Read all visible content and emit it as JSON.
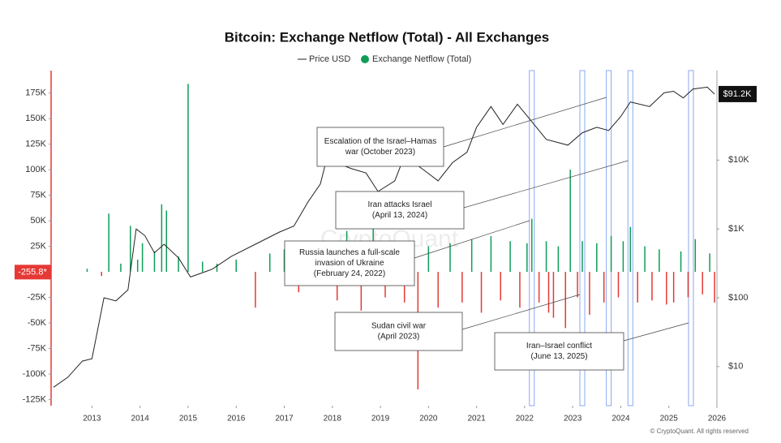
{
  "chart_data": {
    "type": "bar-line",
    "title": "Bitcoin: Exchange Netflow (Total) - All Exchanges",
    "xlim": [
      2012.15,
      2026.0
    ],
    "xticks": [
      2013,
      2014,
      2015,
      2016,
      2017,
      2018,
      2019,
      2020,
      2021,
      2022,
      2023,
      2024,
      2025,
      2026
    ],
    "ylim": [
      -131000,
      197000
    ],
    "yticks": [
      {
        "value": -125000,
        "label": "-125K"
      },
      {
        "value": -100000,
        "label": "-100K"
      },
      {
        "value": -75000,
        "label": "-75K"
      },
      {
        "value": -50000,
        "label": "-50K"
      },
      {
        "value": -25000,
        "label": "-25K"
      },
      {
        "value": 25000,
        "label": "25K"
      },
      {
        "value": 50000,
        "label": "50K"
      },
      {
        "value": 75000,
        "label": "75K"
      },
      {
        "value": 100000,
        "label": "100K"
      },
      {
        "value": 125000,
        "label": "125K"
      },
      {
        "value": 150000,
        "label": "150K"
      },
      {
        "value": 175000,
        "label": "175K"
      }
    ],
    "y2lim": [
      2.7,
      200000
    ],
    "y2_log": true,
    "y2ticks": [
      {
        "value": 10,
        "label": "$10"
      },
      {
        "value": 100,
        "label": "$100"
      },
      {
        "value": 1000,
        "label": "$1K"
      },
      {
        "value": 10000,
        "label": "$10K"
      }
    ],
    "series": [
      {
        "name": "Exchange Netflow (Total)",
        "type": "bar",
        "color": "#0f9d58",
        "negative_color": "#e53935",
        "x": [
          2012.9,
          2013.2,
          2013.35,
          2013.6,
          2013.8,
          2013.95,
          2014.05,
          2014.3,
          2014.45,
          2014.55,
          2014.8,
          2015.0,
          2015.3,
          2015.6,
          2016.0,
          2016.4,
          2016.7,
          2017.0,
          2017.3,
          2017.6,
          2017.9,
          2018.1,
          2018.3,
          2018.6,
          2018.85,
          2019.1,
          2019.3,
          2019.5,
          2019.78,
          2020.0,
          2020.2,
          2020.45,
          2020.7,
          2020.9,
          2021.1,
          2021.3,
          2021.5,
          2021.7,
          2021.9,
          2022.05,
          2022.15,
          2022.3,
          2022.45,
          2022.5,
          2022.6,
          2022.7,
          2022.85,
          2022.95,
          2023.1,
          2023.2,
          2023.35,
          2023.5,
          2023.65,
          2023.8,
          2023.95,
          2024.05,
          2024.2,
          2024.35,
          2024.5,
          2024.65,
          2024.8,
          2024.95,
          2025.1,
          2025.25,
          2025.4,
          2025.55,
          2025.7,
          2025.85,
          2025.95
        ],
        "values": [
          3000,
          -4000,
          57000,
          8000,
          45000,
          12000,
          28000,
          20000,
          66000,
          60000,
          15000,
          184000,
          10000,
          8000,
          12000,
          -35000,
          18000,
          22000,
          -20000,
          25000,
          30000,
          -28000,
          40000,
          -38000,
          60000,
          -25000,
          30000,
          -30000,
          -115000,
          25000,
          -35000,
          28000,
          -30000,
          32000,
          -40000,
          35000,
          -28000,
          30000,
          -35000,
          28000,
          52000,
          -30000,
          30000,
          -40000,
          -45000,
          25000,
          -55000,
          100000,
          -25000,
          30000,
          -42000,
          28000,
          -30000,
          35000,
          -25000,
          30000,
          44000,
          -30000,
          25000,
          -28000,
          22000,
          -32000,
          -30000,
          20000,
          -25000,
          32000,
          -22000,
          18000,
          -30000
        ]
      },
      {
        "name": "Price USD",
        "type": "line",
        "axis": "y2",
        "color": "#222222",
        "x": [
          2012.2,
          2012.5,
          2012.8,
          2013.0,
          2013.25,
          2013.5,
          2013.75,
          2013.92,
          2014.1,
          2014.3,
          2014.5,
          2014.8,
          2015.05,
          2015.5,
          2015.9,
          2016.5,
          2016.9,
          2017.2,
          2017.5,
          2017.75,
          2017.96,
          2018.1,
          2018.4,
          2018.7,
          2018.95,
          2019.3,
          2019.5,
          2019.9,
          2020.2,
          2020.5,
          2020.8,
          2021.0,
          2021.3,
          2021.55,
          2021.85,
          2022.1,
          2022.45,
          2022.9,
          2023.2,
          2023.5,
          2023.75,
          2024.0,
          2024.2,
          2024.6,
          2024.9,
          2025.1,
          2025.3,
          2025.5,
          2025.8,
          2025.95
        ],
        "values": [
          5,
          7,
          12,
          13,
          100,
          90,
          130,
          1000,
          800,
          450,
          600,
          380,
          200,
          260,
          400,
          650,
          900,
          1100,
          2500,
          4500,
          17000,
          9000,
          7500,
          6500,
          3500,
          5000,
          11500,
          7200,
          5000,
          9200,
          13000,
          30000,
          60000,
          33000,
          65000,
          40000,
          20000,
          16500,
          25000,
          30000,
          27000,
          43000,
          70000,
          60000,
          95000,
          100000,
          80000,
          108000,
          115000,
          91200
        ]
      }
    ],
    "current_netflow": {
      "value": -255.8,
      "label": "-255.8*"
    },
    "current_price": {
      "value": 91200,
      "label": "$91.2K"
    },
    "highlight_color": "#8aa8f0",
    "annotations": [
      {
        "lines": [
          "Escalation of the Israel–Hamas",
          "war (October 2023)"
        ],
        "x": 2023.75
      },
      {
        "lines": [
          "Iran attacks Israel",
          "(April 13, 2024)"
        ],
        "x": 2024.2
      },
      {
        "lines": [
          "Russia launches a full-scale",
          "invasion of Ukraine",
          "(February 24, 2022)"
        ],
        "x": 2022.15
      },
      {
        "lines": [
          "Sudan civil war",
          "(April 2023)"
        ],
        "x": 2023.2
      },
      {
        "lines": [
          "Iran–Israel conflict",
          "(June 13, 2025)"
        ],
        "x": 2025.46
      }
    ],
    "watermark": "CryptoQuant",
    "copyright": "© CryptoQuant. All rights reserved"
  }
}
